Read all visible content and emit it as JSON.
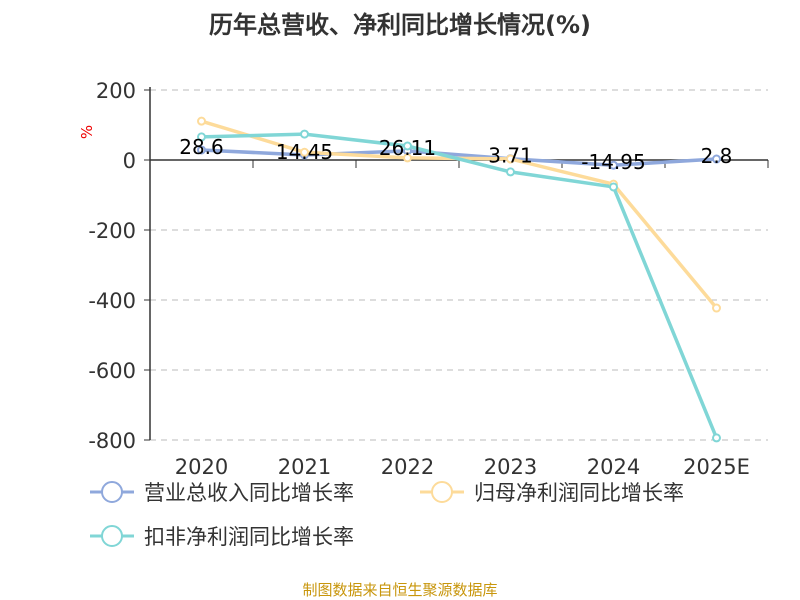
{
  "chart_data": {
    "type": "line",
    "title": "历年总营收、净利同比增长情况(%)",
    "ylabel": "%",
    "xlabel": "",
    "categories": [
      "2020",
      "2021",
      "2022",
      "2023",
      "2024",
      "2025E"
    ],
    "ylim": [
      -800,
      200
    ],
    "yticks": [
      200,
      0,
      -200,
      -400,
      -600,
      -800
    ],
    "grid": true,
    "series": [
      {
        "name": "营业总收入同比增长率",
        "color": "#8fa8dc",
        "values": [
          28.6,
          14.45,
          26.11,
          3.71,
          -14.95,
          2.8
        ],
        "labels": [
          "28.6",
          "14.45",
          "26.11",
          "3.71",
          "-14.95",
          "2.8"
        ]
      },
      {
        "name": "归母净利润同比增长率",
        "color": "#fddb9a",
        "values": [
          111,
          22,
          6,
          3,
          -69,
          -423
        ]
      },
      {
        "name": "扣非净利润同比增长率",
        "color": "#80d6d6",
        "values": [
          66,
          74,
          40,
          -34,
          -77,
          -794
        ]
      }
    ],
    "legend_position": "bottom",
    "source": "制图数据来自恒生聚源数据库",
    "source_color": "#c8960c"
  }
}
